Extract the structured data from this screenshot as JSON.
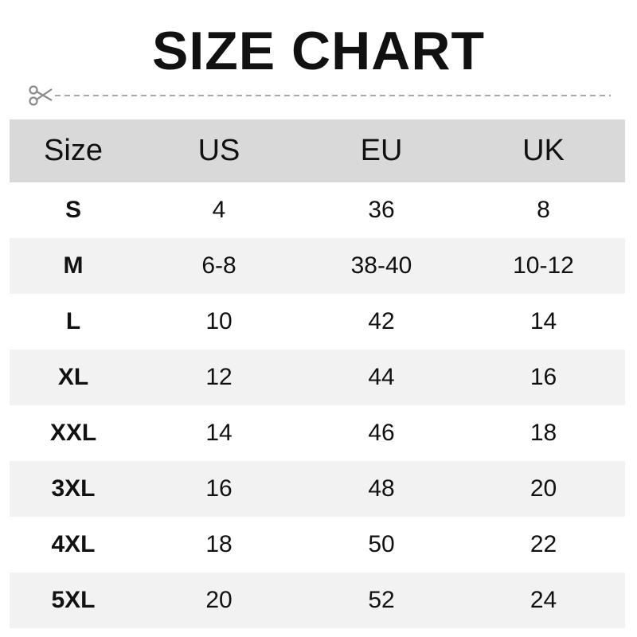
{
  "title": "SIZE CHART",
  "cut_line_icon": "scissors-icon",
  "colors": {
    "header_bg": "#d9d9d9",
    "stripe_bg": "#f2f2f2",
    "text": "#111111"
  },
  "headers": [
    "Size",
    "US",
    "EU",
    "UK"
  ],
  "rows": [
    [
      "S",
      "4",
      "36",
      "8"
    ],
    [
      "M",
      "6-8",
      "38-40",
      "10-12"
    ],
    [
      "L",
      "10",
      "42",
      "14"
    ],
    [
      "XL",
      "12",
      "44",
      "16"
    ],
    [
      "XXL",
      "14",
      "46",
      "18"
    ],
    [
      "3XL",
      "16",
      "48",
      "20"
    ],
    [
      "4XL",
      "18",
      "50",
      "22"
    ],
    [
      "5XL",
      "20",
      "52",
      "24"
    ]
  ]
}
